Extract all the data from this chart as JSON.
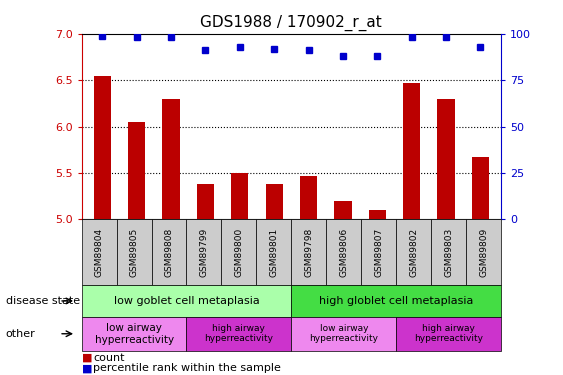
{
  "title": "GDS1988 / 170902_r_at",
  "samples": [
    "GSM89804",
    "GSM89805",
    "GSM89808",
    "GSM89799",
    "GSM89800",
    "GSM89801",
    "GSM89798",
    "GSM89806",
    "GSM89807",
    "GSM89802",
    "GSM89803",
    "GSM89809"
  ],
  "bar_values": [
    6.55,
    6.05,
    6.3,
    5.38,
    5.5,
    5.38,
    5.47,
    5.2,
    5.1,
    6.47,
    6.3,
    5.67
  ],
  "percentile_values": [
    99,
    98,
    98,
    91,
    93,
    92,
    91,
    88,
    88,
    98,
    98,
    93
  ],
  "ylim_left": [
    5.0,
    7.0
  ],
  "ylim_right": [
    0,
    100
  ],
  "yticks_left": [
    5.0,
    5.5,
    6.0,
    6.5,
    7.0
  ],
  "yticks_right": [
    0,
    25,
    50,
    75,
    100
  ],
  "bar_color": "#bb0000",
  "dot_color": "#0000cc",
  "bar_width": 0.5,
  "disease_state_groups": [
    {
      "label": "low goblet cell metaplasia",
      "start": 0,
      "end": 5,
      "color": "#aaffaa"
    },
    {
      "label": "high globlet cell metaplasia",
      "start": 6,
      "end": 11,
      "color": "#44dd44"
    }
  ],
  "other_groups": [
    {
      "label": "low airway\nhyperreactivity",
      "start": 0,
      "end": 2,
      "color": "#ee88ee"
    },
    {
      "label": "high airway\nhyperreactivity",
      "start": 3,
      "end": 5,
      "color": "#cc33cc"
    },
    {
      "label": "low airway\nhyperreactivity",
      "start": 6,
      "end": 8,
      "color": "#ee88ee"
    },
    {
      "label": "high airway\nhyperreactivity",
      "start": 9,
      "end": 11,
      "color": "#cc33cc"
    }
  ],
  "disease_row_label": "disease state",
  "other_row_label": "other",
  "legend_count_label": "count",
  "legend_pct_label": "percentile rank within the sample",
  "tick_label_color_left": "#cc0000",
  "tick_label_color_right": "#0000cc",
  "xticklabel_bg": "#cccccc"
}
